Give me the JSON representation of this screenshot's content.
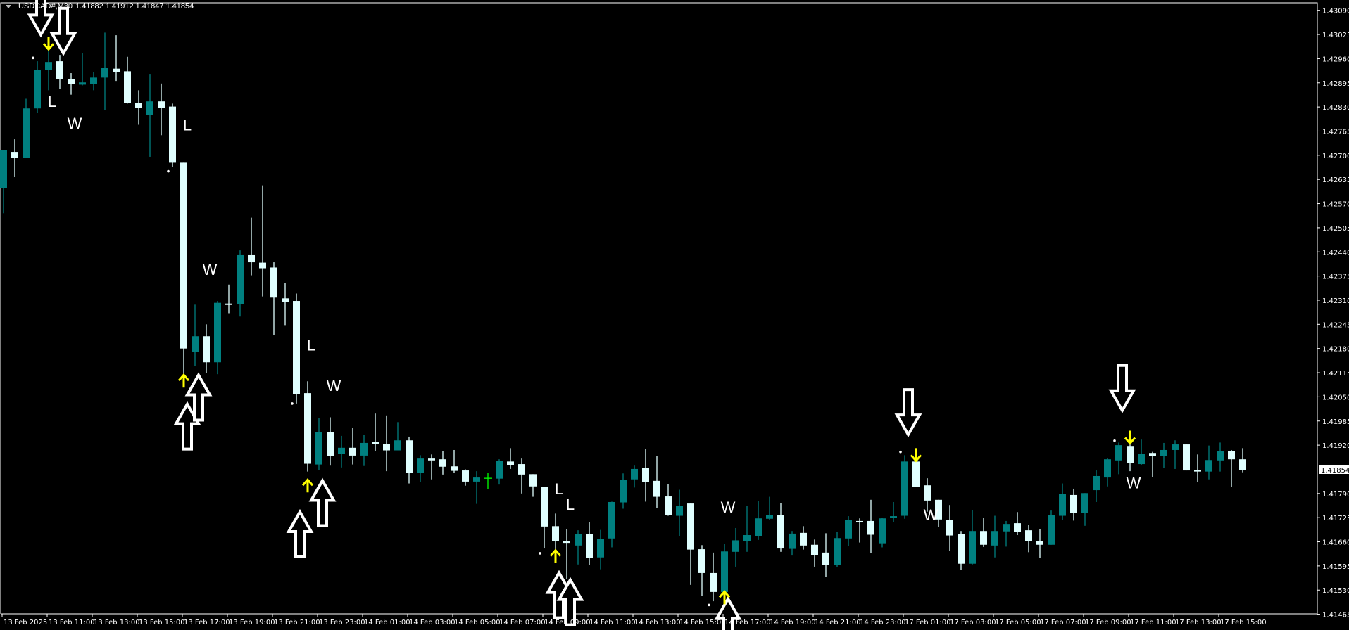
{
  "header": {
    "symbol": "USDCAD#,M30",
    "ohlc": "1.41882 1.41912 1.41847 1.41854"
  },
  "colors": {
    "background": "#000000",
    "bull": "#008080",
    "bear": "#e0ffff",
    "doji_cross": "#00ff00",
    "signal_arrow": "#ffff00",
    "hollow_arrow": "#ffffff",
    "axis": "#ffffff"
  },
  "chart_data": {
    "type": "candlestick",
    "title": "",
    "ylim": [
      1.41465,
      1.4309
    ],
    "y_ticks": [
      "1.43090",
      "1.43025",
      "1.42960",
      "1.42895",
      "1.42830",
      "1.42765",
      "1.42700",
      "1.42635",
      "1.42570",
      "1.42505",
      "1.42440",
      "1.42375",
      "1.42310",
      "1.42245",
      "1.42180",
      "1.42115",
      "1.42050",
      "1.41985",
      "1.41920",
      "1.41854",
      "1.41790",
      "1.41725",
      "1.41660",
      "1.41595",
      "1.41530",
      "1.41465"
    ],
    "current_price": "1.41854",
    "x_ticks": [
      "13 Feb 2025",
      "13 Feb 11:00",
      "13 Feb 13:00",
      "13 Feb 15:00",
      "13 Feb 17:00",
      "13 Feb 19:00",
      "13 Feb 21:00",
      "13 Feb 23:00",
      "14 Feb 01:00",
      "14 Feb 03:00",
      "14 Feb 05:00",
      "14 Feb 07:00",
      "14 Feb 09:00",
      "14 Feb 11:00",
      "14 Feb 13:00",
      "14 Feb 15:00",
      "14 Feb 17:00",
      "14 Feb 19:00",
      "14 Feb 21:00",
      "14 Feb 23:00",
      "17 Feb 01:00",
      "17 Feb 03:00",
      "17 Feb 05:00",
      "17 Feb 07:00",
      "17 Feb 09:00",
      "17 Feb 11:00",
      "17 Feb 13:00",
      "17 Feb 15:00"
    ],
    "ohlc_fields": [
      "open",
      "high",
      "low",
      "close"
    ],
    "candles": [
      [
        1.42611,
        1.42713,
        1.42544,
        1.42713
      ],
      [
        1.42709,
        1.42743,
        1.42641,
        1.42694
      ],
      [
        1.42694,
        1.42852,
        1.42694,
        1.42826
      ],
      [
        1.42826,
        1.42953,
        1.42815,
        1.4293
      ],
      [
        1.42929,
        1.42986,
        1.42875,
        1.42951
      ],
      [
        1.42953,
        1.4297,
        1.42879,
        1.42905
      ],
      [
        1.42905,
        1.42921,
        1.42863,
        1.42891
      ],
      [
        1.4289,
        1.42974,
        1.42888,
        1.42896
      ],
      [
        1.42891,
        1.42923,
        1.42875,
        1.42909
      ],
      [
        1.42909,
        1.4303,
        1.42821,
        1.42935
      ],
      [
        1.42933,
        1.43023,
        1.429,
        1.42923
      ],
      [
        1.42926,
        1.42965,
        1.42839,
        1.4284
      ],
      [
        1.4284,
        1.42875,
        1.42782,
        1.42828
      ],
      [
        1.42808,
        1.42919,
        1.42696,
        1.42845
      ],
      [
        1.42845,
        1.42893,
        1.42754,
        1.42827
      ],
      [
        1.42831,
        1.42839,
        1.42669,
        1.4268
      ],
      [
        1.4268,
        1.4268,
        1.42099,
        1.4218
      ],
      [
        1.42171,
        1.42298,
        1.42134,
        1.42213
      ],
      [
        1.42213,
        1.42245,
        1.42115,
        1.42143
      ],
      [
        1.42143,
        1.42308,
        1.42111,
        1.42303
      ],
      [
        1.42301,
        1.42352,
        1.42275,
        1.423
      ],
      [
        1.423,
        1.42444,
        1.42266,
        1.42433
      ],
      [
        1.42433,
        1.42532,
        1.42377,
        1.42412
      ],
      [
        1.42411,
        1.42619,
        1.4232,
        1.42396
      ],
      [
        1.42398,
        1.42412,
        1.42217,
        1.42317
      ],
      [
        1.42315,
        1.42357,
        1.42243,
        1.42305
      ],
      [
        1.42308,
        1.42328,
        1.42032,
        1.42058
      ],
      [
        1.4206,
        1.42092,
        1.41849,
        1.4187
      ],
      [
        1.41868,
        1.41993,
        1.41854,
        1.41956
      ],
      [
        1.41956,
        1.41995,
        1.41865,
        1.41891
      ],
      [
        1.41897,
        1.41945,
        1.4186,
        1.41913
      ],
      [
        1.41913,
        1.41967,
        1.41868,
        1.41892
      ],
      [
        1.41892,
        1.41948,
        1.41864,
        1.41926
      ],
      [
        1.41928,
        1.42005,
        1.41904,
        1.41923
      ],
      [
        1.41924,
        1.42,
        1.4185,
        1.41906
      ],
      [
        1.41906,
        1.41982,
        1.41906,
        1.41933
      ],
      [
        1.41933,
        1.41943,
        1.41817,
        1.41845
      ],
      [
        1.41845,
        1.41893,
        1.4182,
        1.41884
      ],
      [
        1.41884,
        1.41895,
        1.41828,
        1.41879
      ],
      [
        1.41882,
        1.41905,
        1.41841,
        1.41862
      ],
      [
        1.41863,
        1.41907,
        1.41845,
        1.41851
      ],
      [
        1.41852,
        1.41855,
        1.41811,
        1.41822
      ],
      [
        1.41822,
        1.4185,
        1.41762,
        1.41833
      ],
      [
        1.41831,
        1.41846,
        1.41802,
        1.41831
      ],
      [
        1.4183,
        1.41882,
        1.41814,
        1.41878
      ],
      [
        1.41876,
        1.41912,
        1.41856,
        1.41866
      ],
      [
        1.41869,
        1.41884,
        1.4179,
        1.41841
      ],
      [
        1.41842,
        1.41842,
        1.41781,
        1.41809
      ],
      [
        1.41808,
        1.41808,
        1.41642,
        1.41701
      ],
      [
        1.41702,
        1.41736,
        1.41636,
        1.41661
      ],
      [
        1.41661,
        1.41694,
        1.4156,
        1.41657
      ],
      [
        1.4165,
        1.41691,
        1.41599,
        1.41681
      ],
      [
        1.4168,
        1.41713,
        1.41597,
        1.41616
      ],
      [
        1.41618,
        1.41692,
        1.41586,
        1.41668
      ],
      [
        1.41669,
        1.41768,
        1.41645,
        1.41767
      ],
      [
        1.41766,
        1.41844,
        1.41749,
        1.41827
      ],
      [
        1.41828,
        1.41865,
        1.41806,
        1.41856
      ],
      [
        1.41858,
        1.4191,
        1.41768,
        1.41821
      ],
      [
        1.41824,
        1.4189,
        1.4175,
        1.41781
      ],
      [
        1.41782,
        1.41815,
        1.4173,
        1.41732
      ],
      [
        1.4173,
        1.418,
        1.41675,
        1.41757
      ],
      [
        1.41763,
        1.41763,
        1.41544,
        1.41639
      ],
      [
        1.4164,
        1.41651,
        1.41514,
        1.41576
      ],
      [
        1.41576,
        1.41631,
        1.415,
        1.41525
      ],
      [
        1.41525,
        1.41655,
        1.41525,
        1.41634
      ],
      [
        1.41633,
        1.41697,
        1.41593,
        1.41664
      ],
      [
        1.41661,
        1.41757,
        1.41633,
        1.41678
      ],
      [
        1.41675,
        1.4177,
        1.41665,
        1.41723
      ],
      [
        1.41722,
        1.41781,
        1.41718,
        1.41731
      ],
      [
        1.41731,
        1.41765,
        1.41633,
        1.41642
      ],
      [
        1.41641,
        1.41689,
        1.41623,
        1.41682
      ],
      [
        1.41684,
        1.41702,
        1.41639,
        1.4165
      ],
      [
        1.41652,
        1.41666,
        1.41593,
        1.41625
      ],
      [
        1.41631,
        1.41683,
        1.41565,
        1.41597
      ],
      [
        1.41597,
        1.41686,
        1.41593,
        1.4167
      ],
      [
        1.41669,
        1.41729,
        1.41648,
        1.41718
      ],
      [
        1.41716,
        1.41723,
        1.41658,
        1.41715
      ],
      [
        1.41716,
        1.41773,
        1.4163,
        1.41679
      ],
      [
        1.41656,
        1.41725,
        1.41645,
        1.41723
      ],
      [
        1.41724,
        1.41767,
        1.41714,
        1.41729
      ],
      [
        1.4173,
        1.41893,
        1.41722,
        1.41876
      ],
      [
        1.41876,
        1.41876,
        1.41807,
        1.41807
      ],
      [
        1.41812,
        1.41831,
        1.41741,
        1.41771
      ],
      [
        1.41773,
        1.41773,
        1.41699,
        1.4172
      ],
      [
        1.41719,
        1.41759,
        1.41635,
        1.41677
      ],
      [
        1.4168,
        1.41689,
        1.41585,
        1.41601
      ],
      [
        1.41601,
        1.41746,
        1.41599,
        1.41689
      ],
      [
        1.41689,
        1.41725,
        1.41646,
        1.41652
      ],
      [
        1.4165,
        1.4173,
        1.41618,
        1.41689
      ],
      [
        1.41688,
        1.41716,
        1.41647,
        1.41708
      ],
      [
        1.4171,
        1.4174,
        1.41678,
        1.41686
      ],
      [
        1.41691,
        1.41706,
        1.41632,
        1.41662
      ],
      [
        1.41661,
        1.41695,
        1.41617,
        1.41652
      ],
      [
        1.41652,
        1.41744,
        1.41652,
        1.41731
      ],
      [
        1.4173,
        1.41817,
        1.41718,
        1.41788
      ],
      [
        1.41786,
        1.41803,
        1.41717,
        1.41738
      ],
      [
        1.41738,
        1.41791,
        1.41703,
        1.41791
      ],
      [
        1.41799,
        1.41852,
        1.41767,
        1.41837
      ],
      [
        1.41833,
        1.41886,
        1.41809,
        1.41882
      ],
      [
        1.41879,
        1.41927,
        1.41842,
        1.4192
      ],
      [
        1.41916,
        1.41927,
        1.4185,
        1.41871
      ],
      [
        1.41869,
        1.41935,
        1.41867,
        1.41897
      ],
      [
        1.41899,
        1.41902,
        1.41835,
        1.41891
      ],
      [
        1.4189,
        1.41926,
        1.41859,
        1.41907
      ],
      [
        1.41907,
        1.41933,
        1.41856,
        1.41922
      ],
      [
        1.41922,
        1.41922,
        1.41852,
        1.41852
      ],
      [
        1.41853,
        1.41895,
        1.41821,
        1.41849
      ],
      [
        1.41849,
        1.41919,
        1.41828,
        1.4188
      ],
      [
        1.41879,
        1.41927,
        1.41849,
        1.41905
      ],
      [
        1.41904,
        1.41907,
        1.41807,
        1.41882
      ],
      [
        1.41882,
        1.41912,
        1.41847,
        1.41854
      ]
    ],
    "doji_cross_bars": [
      43
    ],
    "hollow_arrows": [
      {
        "bar": 3,
        "dir": "down",
        "price": 1.43085
      },
      {
        "bar": 5,
        "dir": "down",
        "price": 1.43035
      },
      {
        "bar": 16,
        "dir": "up",
        "price": 1.4197
      },
      {
        "bar": 17,
        "dir": "up",
        "price": 1.42048
      },
      {
        "bar": 26,
        "dir": "up",
        "price": 1.4168
      },
      {
        "bar": 28,
        "dir": "up",
        "price": 1.41764
      },
      {
        "bar": 49,
        "dir": "up",
        "price": 1.41516
      },
      {
        "bar": 50,
        "dir": "up",
        "price": 1.41497
      },
      {
        "bar": 64,
        "dir": "up",
        "price": 1.41446
      },
      {
        "bar": 80,
        "dir": "down",
        "price": 1.42009
      },
      {
        "bar": 99,
        "dir": "down",
        "price": 1.42074
      }
    ],
    "signal_arrows": [
      {
        "bar": 4,
        "dir": "down",
        "price": 1.43002
      },
      {
        "bar": 16,
        "dir": "up",
        "price": 1.42092
      },
      {
        "bar": 27,
        "dir": "up",
        "price": 1.4181
      },
      {
        "bar": 49,
        "dir": "up",
        "price": 1.4162
      },
      {
        "bar": 64,
        "dir": "up",
        "price": 1.41509
      },
      {
        "bar": 81,
        "dir": "down",
        "price": 1.41895
      },
      {
        "bar": 100,
        "dir": "down",
        "price": 1.41942
      }
    ],
    "dots": [
      {
        "bar": 3,
        "price": 1.42962
      },
      {
        "bar": 15,
        "price": 1.42657
      },
      {
        "bar": 26,
        "price": 1.42032
      },
      {
        "bar": 48,
        "price": 1.41629
      },
      {
        "bar": 63,
        "price": 1.4149
      },
      {
        "bar": 80,
        "price": 1.41902
      },
      {
        "bar": 99,
        "price": 1.41932
      }
    ],
    "labels": [
      {
        "bar": 4,
        "text": "L",
        "price": 1.42845
      },
      {
        "bar": 6,
        "text": "W",
        "price": 1.42787
      },
      {
        "bar": 16,
        "text": "L",
        "price": 1.42782
      },
      {
        "bar": 18,
        "text": "W",
        "price": 1.42393
      },
      {
        "bar": 27,
        "text": "L",
        "price": 1.4219
      },
      {
        "bar": 29,
        "text": "W",
        "price": 1.42081
      },
      {
        "bar": 49,
        "text": "L",
        "price": 1.41803
      },
      {
        "bar": 50,
        "text": "L",
        "price": 1.41761
      },
      {
        "bar": 64,
        "text": "W",
        "price": 1.41754
      },
      {
        "bar": 82,
        "text": "W",
        "price": 1.41733
      },
      {
        "bar": 100,
        "text": "W",
        "price": 1.41819
      }
    ]
  }
}
